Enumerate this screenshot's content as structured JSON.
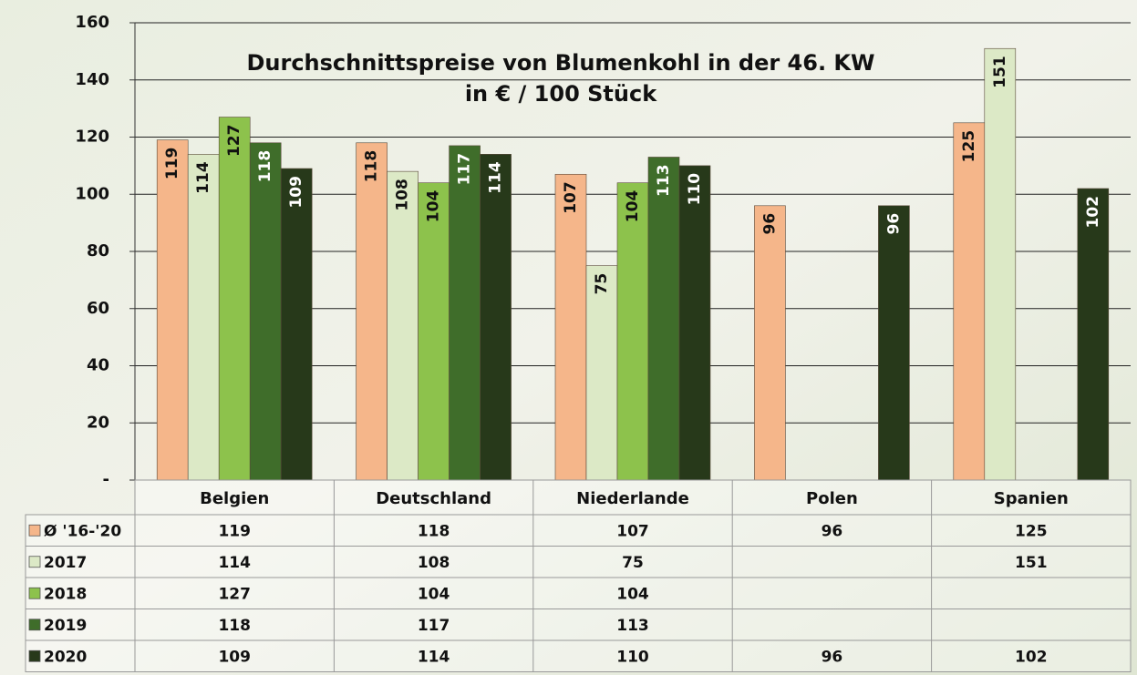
{
  "chart_data": {
    "type": "bar",
    "title": "Durchschnittspreise von Blumenkohl in der 46. KW",
    "subtitle": "in € / 100 Stück",
    "categories": [
      "Belgien",
      "Deutschland",
      "Niederlande",
      "Polen",
      "Spanien"
    ],
    "series": [
      {
        "name": "Ø '16-'20",
        "color": "#f5b68a",
        "values": [
          119,
          118,
          107,
          96,
          125
        ]
      },
      {
        "name": "2017",
        "color": "#dce9c6",
        "values": [
          114,
          108,
          75,
          null,
          151
        ]
      },
      {
        "name": "2018",
        "color": "#8dc24c",
        "values": [
          127,
          104,
          104,
          null,
          null
        ]
      },
      {
        "name": "2019",
        "color": "#3f6d2a",
        "values": [
          118,
          117,
          113,
          null,
          null
        ]
      },
      {
        "name": "2020",
        "color": "#27391a",
        "values": [
          109,
          114,
          110,
          96,
          102
        ]
      }
    ],
    "ylim": [
      0,
      160
    ],
    "yticks": [
      {
        "value": 0,
        "label": "-"
      },
      20,
      40,
      60,
      80,
      100,
      120,
      140,
      160
    ],
    "grid": true
  }
}
